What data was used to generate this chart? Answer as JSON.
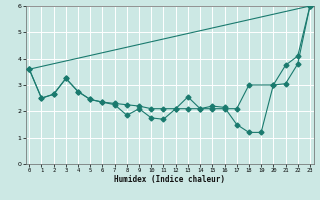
{
  "xlabel": "Humidex (Indice chaleur)",
  "bg_color": "#cce8e4",
  "grid_color": "#ffffff",
  "line_color": "#1a7a6e",
  "xlim": [
    0,
    23
  ],
  "ylim": [
    0,
    6
  ],
  "xticks": [
    0,
    1,
    2,
    3,
    4,
    5,
    6,
    7,
    8,
    9,
    10,
    11,
    12,
    13,
    14,
    15,
    16,
    17,
    18,
    19,
    20,
    21,
    22,
    23
  ],
  "yticks": [
    0,
    1,
    2,
    3,
    4,
    5,
    6
  ],
  "line1_x": [
    0,
    23
  ],
  "line1_y": [
    3.6,
    6.0
  ],
  "line2_x": [
    0,
    1,
    2,
    3,
    4,
    5,
    6,
    7,
    8,
    9,
    10,
    11,
    12,
    13,
    14,
    15,
    16,
    17,
    18,
    19,
    20,
    21,
    22,
    23
  ],
  "line2_y": [
    3.6,
    2.5,
    2.65,
    3.25,
    2.75,
    2.45,
    2.35,
    2.25,
    1.85,
    2.1,
    1.75,
    1.7,
    2.1,
    2.55,
    2.1,
    2.2,
    2.15,
    1.5,
    1.2,
    1.2,
    3.0,
    3.75,
    4.1,
    6.0
  ],
  "line3_x": [
    0,
    1,
    2,
    3,
    4,
    5,
    6,
    7,
    8,
    9,
    10,
    11,
    12,
    13,
    14,
    15,
    16,
    17,
    18,
    20,
    21,
    22,
    23
  ],
  "line3_y": [
    3.6,
    2.5,
    2.65,
    3.25,
    2.75,
    2.45,
    2.35,
    2.3,
    2.25,
    2.2,
    2.1,
    2.1,
    2.1,
    2.1,
    2.1,
    2.1,
    2.1,
    2.1,
    3.0,
    3.0,
    3.05,
    3.8,
    6.0
  ]
}
